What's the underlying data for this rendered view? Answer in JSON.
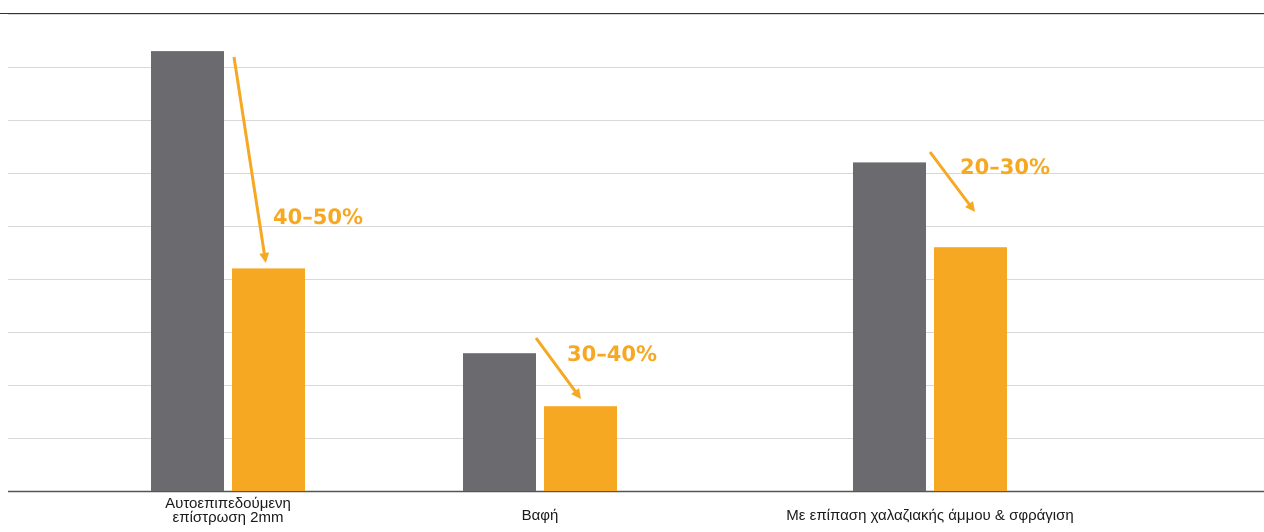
{
  "chart_data": {
    "type": "bar",
    "categories": [
      "Αυτοεπιπεδούμενη\nεπίστρωση 2mm",
      "Βαφή",
      "Με επίπαση χαλαζιακής άμμου & σφράγιση"
    ],
    "series": [
      {
        "values": [
          8.3,
          2.6,
          6.2
        ]
      },
      {
        "values": [
          4.2,
          1.6,
          4.6
        ]
      }
    ],
    "annotations": [
      "40–50%",
      "30–40%",
      "20–30%"
    ],
    "ylim": [
      0,
      9
    ],
    "grid": true,
    "legend": "none",
    "colors": {
      "series_before": "#6b6b6f",
      "series_after": "#f6a823",
      "annotation": "#f6a823",
      "grid": "#d9d9d9",
      "axis": "#555555"
    }
  }
}
